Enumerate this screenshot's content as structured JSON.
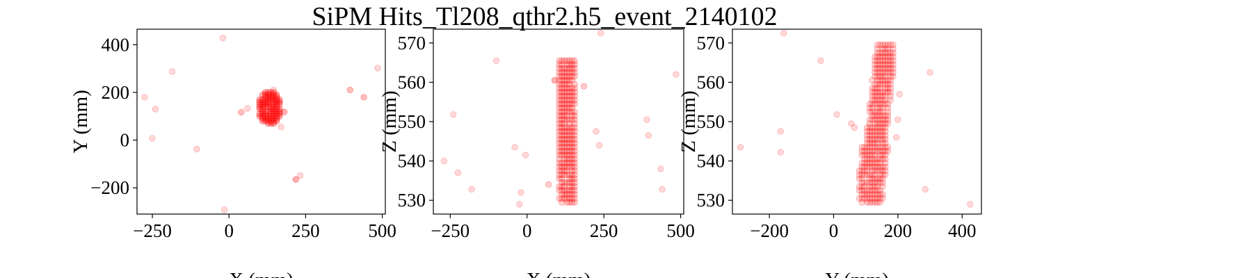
{
  "chart_data": {
    "type": "scatter",
    "title": "SiPM Hits_Tl208_qthr2.h5_event_2140102",
    "marker_color": "#ff0000",
    "panels": [
      {
        "name": "xy",
        "xlabel": "X (mm)",
        "ylabel": "Y (mm)",
        "xlim": [
          -300,
          510
        ],
        "ylim": [
          -310,
          465
        ],
        "xticks": [
          -250,
          0,
          250,
          500
        ],
        "xtick_labels": [
          "−250",
          "0",
          "250",
          "500"
        ],
        "yticks": [
          -200,
          0,
          200,
          400
        ],
        "ytick_labels": [
          "−200",
          "0",
          "200",
          "400"
        ],
        "cluster": {
          "x": [
            100,
            165
          ],
          "y": [
            70,
            200
          ],
          "step": 10,
          "opacity": 0.3
        },
        "points": [
          [
            -20,
            428,
            0.15
          ],
          [
            -185,
            288,
            0.15
          ],
          [
            -275,
            180,
            0.15
          ],
          [
            -240,
            130,
            0.15
          ],
          [
            -250,
            8,
            0.15
          ],
          [
            -105,
            -38,
            0.15
          ],
          [
            -15,
            -292,
            0.15
          ],
          [
            485,
            302,
            0.15
          ],
          [
            395,
            210,
            0.25
          ],
          [
            440,
            180,
            0.25
          ],
          [
            232,
            -148,
            0.15
          ],
          [
            218,
            -165,
            0.3
          ],
          [
            40,
            117,
            0.25
          ],
          [
            60,
            133,
            0.15
          ],
          [
            180,
            118,
            0.3
          ],
          [
            170,
            55,
            0.15
          ],
          [
            145,
            210,
            0.15
          ]
        ]
      },
      {
        "name": "xz",
        "xlabel": "X (mm)",
        "ylabel": "Z (mm)",
        "xlim": [
          -305,
          510
        ],
        "ylim": [
          526.5,
          573.5
        ],
        "xticks": [
          -250,
          0,
          250,
          500
        ],
        "xtick_labels": [
          "−250",
          "0",
          "250",
          "500"
        ],
        "yticks": [
          530,
          540,
          550,
          560,
          570
        ],
        "ytick_labels": [
          "530",
          "540",
          "550",
          "560",
          "570"
        ],
        "cluster": {
          "x": [
            105,
            155
          ],
          "y": [
            529.5,
            566
          ],
          "step": 1.0,
          "opacity": 0.18
        },
        "points": [
          [
            -100,
            565.5,
            0.15
          ],
          [
            240,
            572.5,
            0.15
          ],
          [
            485,
            562,
            0.15
          ],
          [
            -240,
            551.8,
            0.15
          ],
          [
            -270,
            540,
            0.15
          ],
          [
            -225,
            537,
            0.15
          ],
          [
            -180,
            532.8,
            0.15
          ],
          [
            -40,
            543.5,
            0.15
          ],
          [
            -25,
            529,
            0.15
          ],
          [
            -5,
            541.5,
            0.15
          ],
          [
            -20,
            532,
            0.15
          ],
          [
            225,
            547.5,
            0.15
          ],
          [
            235,
            544,
            0.15
          ],
          [
            390,
            550.5,
            0.15
          ],
          [
            395,
            546.5,
            0.15
          ],
          [
            435,
            538,
            0.15
          ],
          [
            440,
            532.8,
            0.15
          ],
          [
            185,
            559,
            0.2
          ],
          [
            90,
            560.5,
            0.3
          ],
          [
            70,
            534,
            0.2
          ]
        ]
      },
      {
        "name": "yz",
        "xlabel": "Y (mm)",
        "ylabel": "Z (mm)",
        "xlim": [
          -315,
          460
        ],
        "ylim": [
          526.5,
          573.5
        ],
        "xticks": [
          -200,
          0,
          200,
          400
        ],
        "xtick_labels": [
          "−200",
          "0",
          "200",
          "400"
        ],
        "yticks": [
          530,
          540,
          550,
          560,
          570
        ],
        "ytick_labels": [
          "530",
          "540",
          "550",
          "560",
          "570"
        ],
        "cluster": {
          "x": [
            80,
            185
          ],
          "y": [
            529.5,
            570
          ],
          "step": 1.0,
          "opacity": 0.16
        },
        "points": [
          [
            -155,
            572.5,
            0.15
          ],
          [
            -40,
            565.5,
            0.15
          ],
          [
            300,
            562.5,
            0.15
          ],
          [
            10,
            551.8,
            0.15
          ],
          [
            -165,
            547.5,
            0.15
          ],
          [
            -165,
            542.2,
            0.15
          ],
          [
            -290,
            543.5,
            0.15
          ],
          [
            55,
            549.5,
            0.15
          ],
          [
            65,
            548.5,
            0.15
          ],
          [
            285,
            532.8,
            0.15
          ],
          [
            425,
            529,
            0.15
          ],
          [
            200,
            550.5,
            0.15
          ],
          [
            195,
            546,
            0.15
          ],
          [
            205,
            557,
            0.15
          ]
        ]
      }
    ]
  }
}
